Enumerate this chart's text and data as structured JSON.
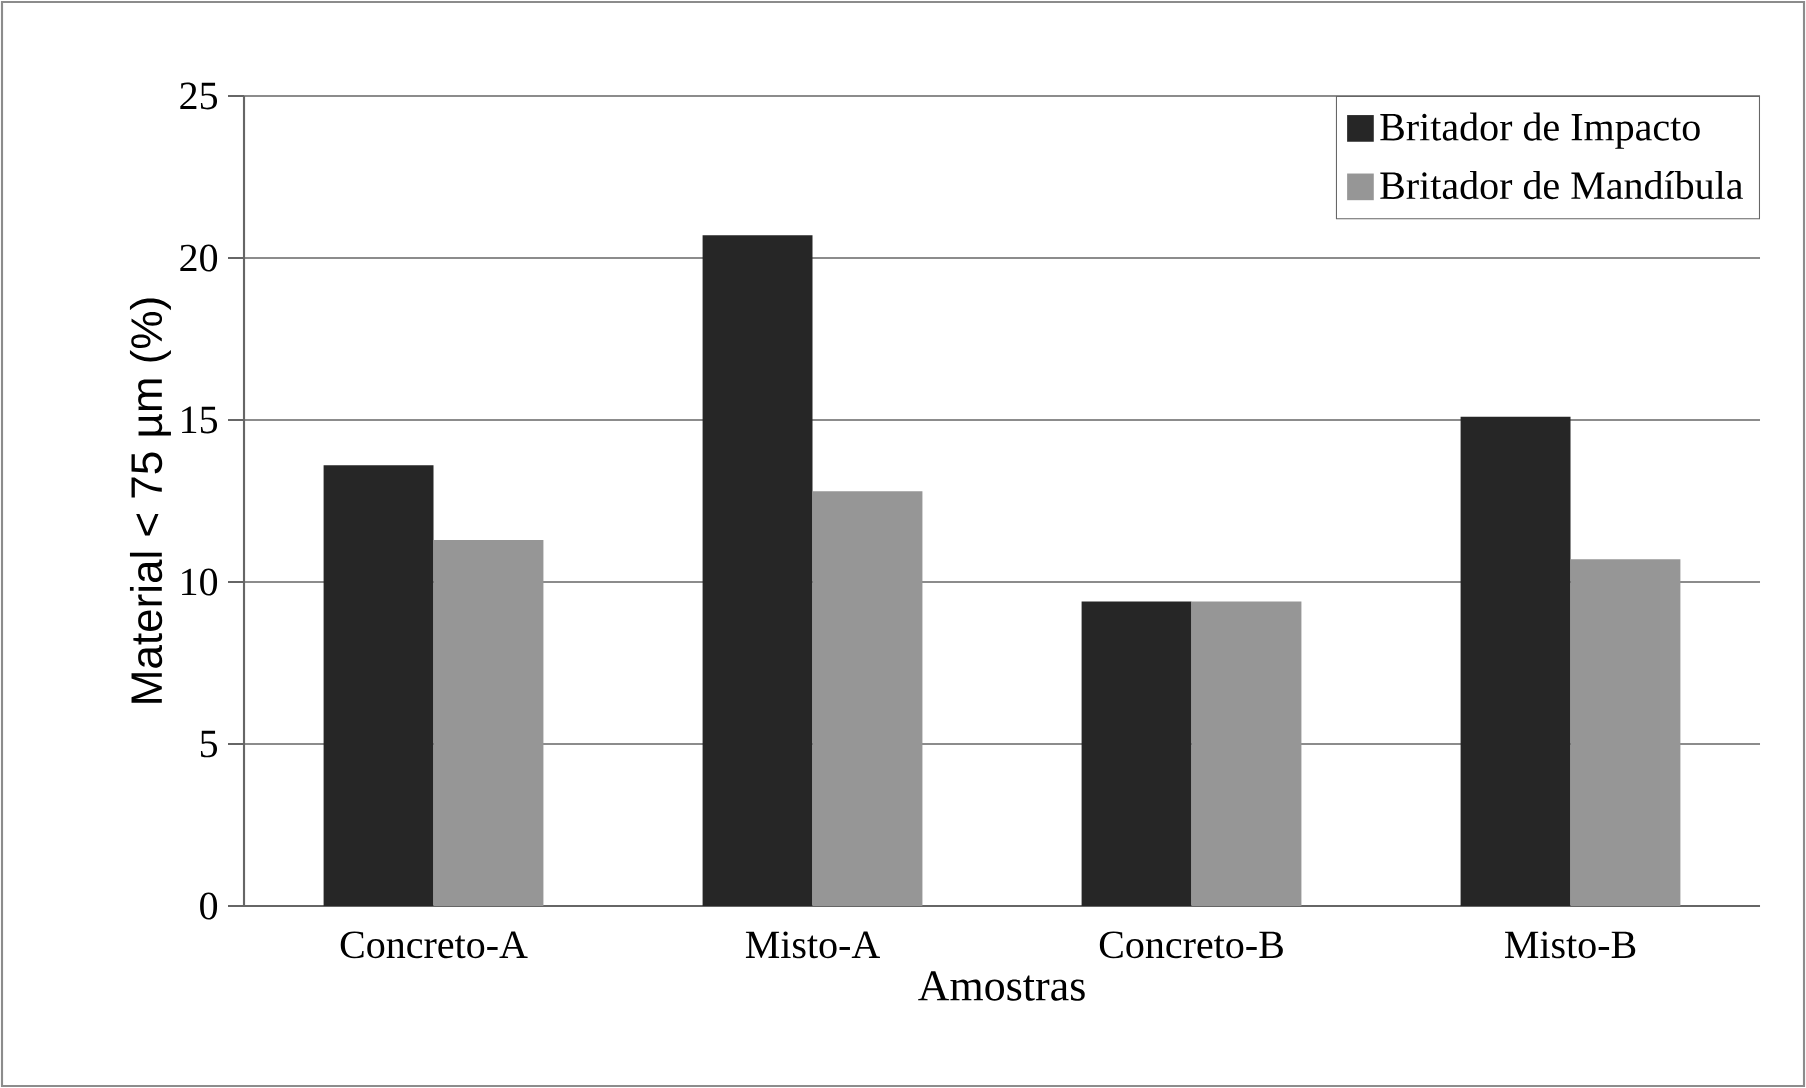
{
  "chart_data": {
    "type": "bar",
    "xlabel": "Amostras",
    "ylabel": "Material < 75 µm (%)",
    "categories": [
      "Concreto-A",
      "Misto-A",
      "Concreto-B",
      "Misto-B"
    ],
    "series": [
      {
        "name": "Britador de Impacto",
        "color": "#262626",
        "values": [
          13.6,
          20.7,
          9.4,
          15.1
        ]
      },
      {
        "name": "Britador de Mandíbula",
        "color": "#969696",
        "values": [
          11.3,
          12.8,
          9.4,
          10.7
        ]
      }
    ],
    "ylim": [
      0,
      25
    ],
    "yticks": [
      0,
      5,
      10,
      15,
      20,
      25
    ],
    "grid": "y",
    "legend": "top right"
  }
}
